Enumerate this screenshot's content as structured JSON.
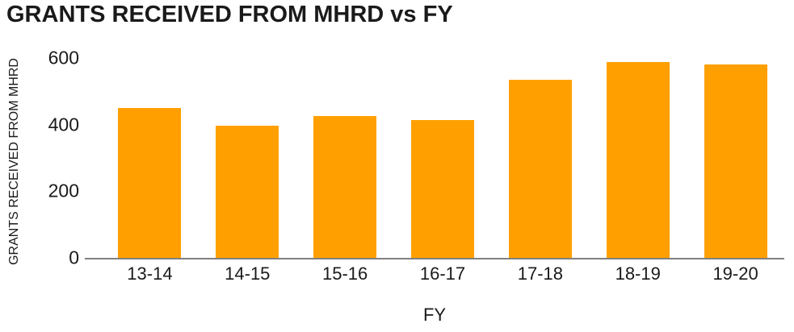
{
  "page": {
    "title": "GRANTS RECEIVED FROM MHRD vs FY"
  },
  "chart_data": {
    "type": "bar",
    "title": "GRANTS RECEIVED FROM MHRD vs FY",
    "categories": [
      "13-14",
      "14-15",
      "15-16",
      "16-17",
      "17-18",
      "18-19",
      "19-20"
    ],
    "values": [
      450,
      398,
      427,
      413,
      534,
      589,
      581
    ],
    "xlabel": "FY",
    "ylabel": "GRANTS RECEIVED FROM MHRD",
    "yticks": [
      0,
      200,
      400,
      600
    ],
    "ylim": [
      0,
      600
    ],
    "grid": false,
    "legend": false,
    "bar_color": "#FFA000",
    "axis_line_color": "#808080",
    "text_color": "#1A1A1A",
    "background_color": "#FFFFFF"
  }
}
